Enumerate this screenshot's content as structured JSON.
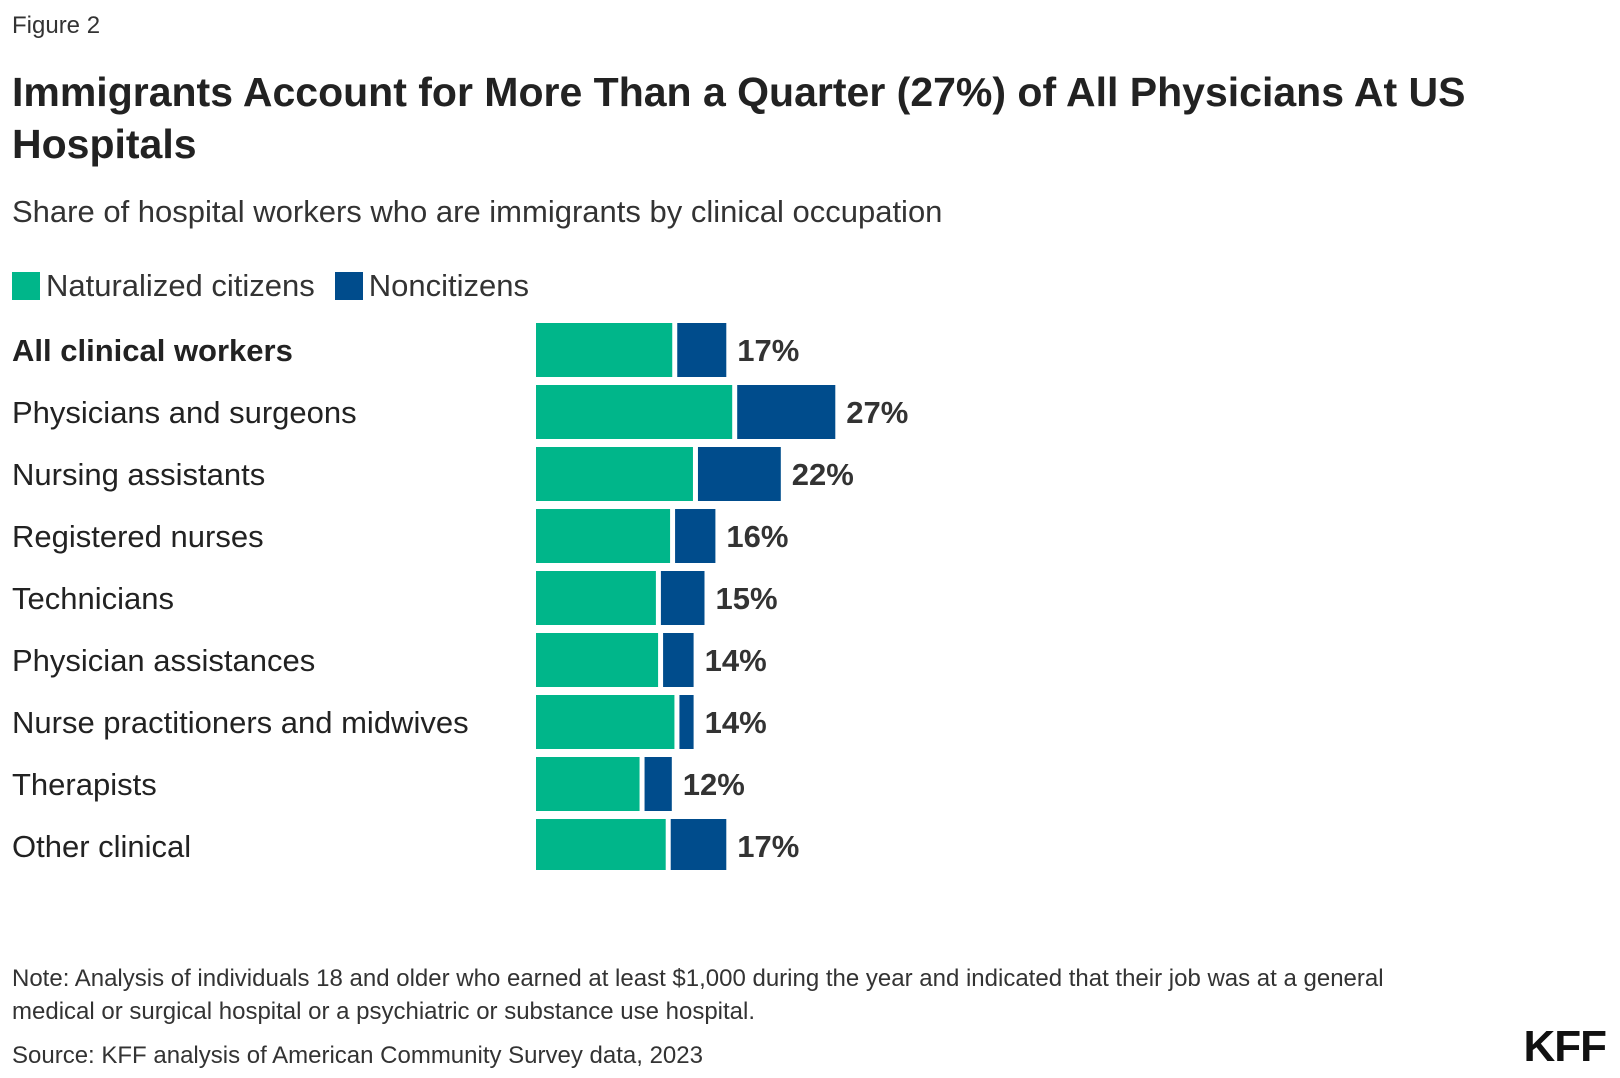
{
  "figure_label": "Figure 2",
  "colors": {
    "naturalized": "#00b68a",
    "noncitizens": "#004c8c"
  },
  "chart_data": {
    "type": "bar",
    "orientation": "horizontal",
    "stacked": true,
    "title": "Immigrants Account for More Than a Quarter (27%) of All Physicians At US Hospitals",
    "subtitle": "Share of hospital workers who are immigrants by clinical occupation",
    "categories": [
      "All clinical workers",
      "Physicians and surgeons",
      "Nursing assistants",
      "Registered nurses",
      "Technicians",
      "Physician assistances",
      "Nurse practitioners and midwives",
      "Therapists",
      "Other clinical"
    ],
    "bold_categories": [
      "All clinical workers"
    ],
    "series": [
      {
        "name": "Naturalized citizens",
        "values": [
          12.5,
          18.0,
          14.4,
          12.3,
          11.0,
          11.2,
          12.7,
          9.5,
          11.9
        ]
      },
      {
        "name": "Noncitizens",
        "values": [
          4.5,
          9.0,
          7.6,
          3.7,
          4.0,
          2.8,
          1.3,
          2.5,
          5.1
        ]
      }
    ],
    "total_labels": [
      "17%",
      "27%",
      "22%",
      "16%",
      "15%",
      "14%",
      "14%",
      "12%",
      "17%"
    ],
    "legend": [
      "Naturalized citizens",
      "Noncitizens"
    ],
    "legend_position": "top-left",
    "xlim": [
      0,
      30
    ],
    "grid": false
  },
  "note": "Note: Analysis of individuals 18 and older who earned at least $1,000 during the year and indicated that their job was at a general medical or surgical hospital or a psychiatric or substance use hospital.",
  "source": "Source: KFF analysis of American Community Survey data, 2023",
  "logo_text": "KFF"
}
